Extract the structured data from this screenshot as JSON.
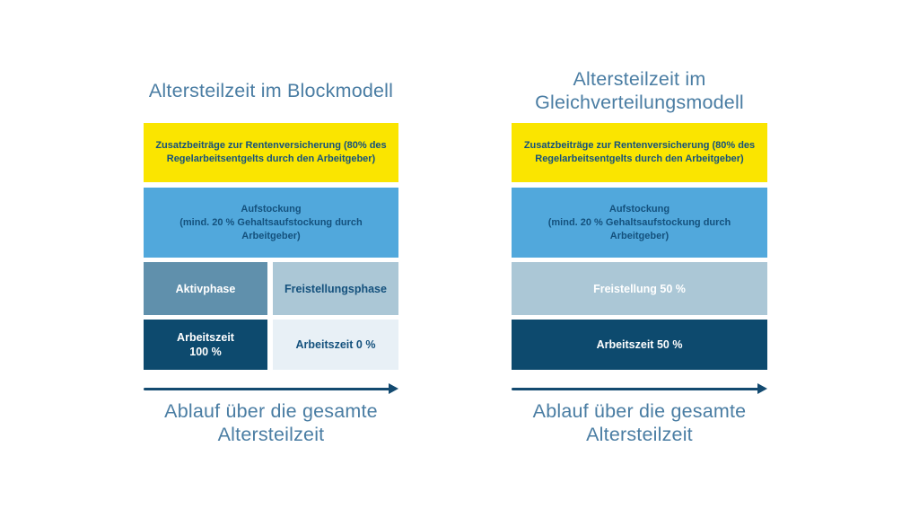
{
  "palette": {
    "yellow": "#FAE500",
    "sky_blue": "#51A8DC",
    "steel_blue": "#6090AC",
    "light_blue": "#ABC7D6",
    "pale_blue": "#E8F0F6",
    "dark_blue": "#0D4A6E",
    "text_dark": "#14517D",
    "heading_blue": "#4A7DA3",
    "arrow_blue": "#134A70"
  },
  "left": {
    "title": "Altersteilzeit im Blockmodell",
    "pension_label": "Zusatzbeiträge zur Rentenversicherung (80% des\nRegelarbeitsentgelts durch den Arbeitgeber)",
    "topup_label": "Aufstockung\n(mind. 20 % Gehaltsaufstockung durch\nArbeitgeber)",
    "active_phase_label": "Aktivphase",
    "release_phase_label": "Freistellungsphase",
    "worktime_full_label": "Arbeitszeit\n100 %",
    "worktime_zero_label": "Arbeitszeit 0 %",
    "caption": "Ablauf über die gesamte\nAltersteilzeit"
  },
  "right": {
    "title": "Altersteilzeit im\nGleichverteilungsmodell",
    "pension_label": "Zusatzbeiträge zur Rentenversicherung (80% des\nRegelarbeitsentgelts durch den Arbeitgeber)",
    "topup_label": "Aufstockung\n(mind. 20 % Gehaltsaufstockung durch\nArbeitgeber)",
    "release_label": "Freistellung 50 %",
    "worktime_label": "Arbeitszeit 50 %",
    "caption": "Ablauf über die gesamte\nAltersteilzeit"
  }
}
